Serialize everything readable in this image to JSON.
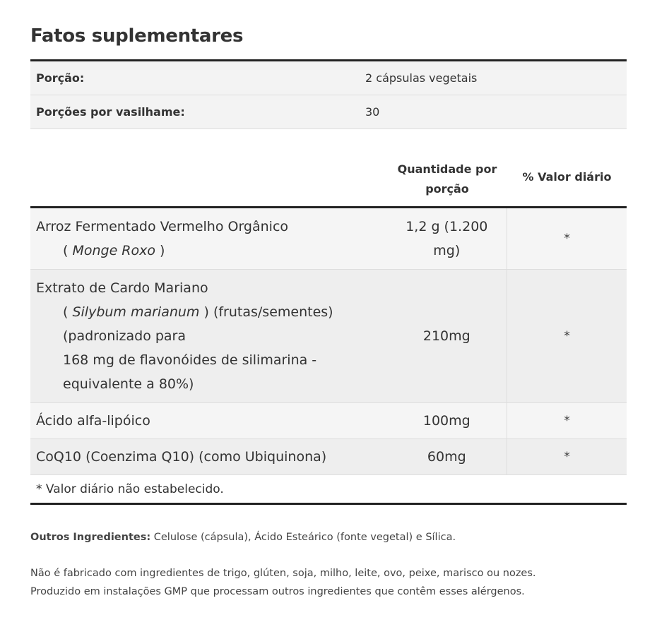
{
  "title": "Fatos suplementares",
  "serving": [
    {
      "label": "Porção:",
      "value": "2 cápsulas vegetais"
    },
    {
      "label": "Porções por vasilhame:",
      "value": "30"
    }
  ],
  "headers": {
    "amount": "Quantidade por porção",
    "dv": "% Valor diário"
  },
  "rows": [
    {
      "lines": [
        "Arroz Fermentado Vermelho Orgânico"
      ],
      "latin": "Monge Roxo",
      "after": "",
      "extra": [],
      "amount": "1,2 g (1.200 mg)",
      "dv": "*"
    },
    {
      "lines": [
        "Extrato de Cardo Mariano"
      ],
      "latin": "Silybum marianum",
      "after": " (frutas/sementes)",
      "extra": [
        "(padronizado para",
        "168 mg de flavonóides de silimarina -",
        "equivalente a 80%)"
      ],
      "amount": "210mg",
      "dv": "*"
    },
    {
      "lines": [
        "Ácido alfa-lipóico"
      ],
      "amount": "100mg",
      "dv": "*"
    },
    {
      "lines": [
        "CoQ10 (Coenzima Q10) (como Ubiquinona)"
      ],
      "amount": "60mg",
      "dv": "*"
    }
  ],
  "footnote": "* Valor diário não estabelecido.",
  "other": {
    "label": "Outros Ingredientes:",
    "text": " Celulose (cápsula), Ácido Esteárico (fonte vegetal) e Sílica."
  },
  "allergens": [
    "Não é fabricado com ingredientes de trigo, glúten, soja, milho, leite, ovo, peixe, marisco ou nozes.",
    "Produzido em instalações GMP que processam outros ingredientes que contêm esses alérgenos."
  ]
}
